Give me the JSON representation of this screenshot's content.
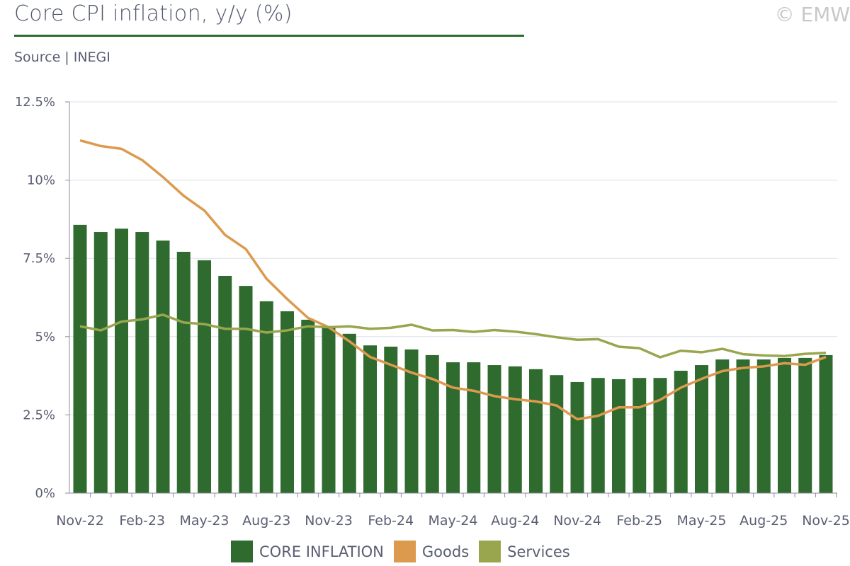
{
  "header": {
    "title": "Core CPI inflation, y/y (%)",
    "source": "Source | INEGI",
    "copyright": "© EMW"
  },
  "chart_data": {
    "type": "bar",
    "title": "Core CPI inflation, y/y (%)",
    "xlabel": "",
    "ylabel": "",
    "ylim": [
      0,
      12.5
    ],
    "yticks": [
      "0%",
      "2.5%",
      "5%",
      "7.5%",
      "10%",
      "12.5%"
    ],
    "ytick_values": [
      0,
      2.5,
      5,
      7.5,
      10,
      12.5
    ],
    "xtick_labels": [
      "Nov-22",
      "Feb-23",
      "May-23",
      "Aug-23",
      "Nov-23",
      "Feb-24",
      "May-24",
      "Aug-24",
      "Nov-24",
      "Feb-25",
      "May-25",
      "Aug-25",
      "Nov-25"
    ],
    "grid": true,
    "legend_placement": "bottom",
    "categories": [
      "Nov-22",
      "Dec-22",
      "Jan-23",
      "Feb-23",
      "Mar-23",
      "Apr-23",
      "May-23",
      "Jun-23",
      "Jul-23",
      "Aug-23",
      "Sep-23",
      "Oct-23",
      "Nov-23",
      "Dec-23",
      "Jan-24",
      "Feb-24",
      "Mar-24",
      "Apr-24",
      "May-24",
      "Jun-24",
      "Jul-24",
      "Aug-24",
      "Sep-24",
      "Oct-24",
      "Nov-24",
      "Dec-24",
      "Jan-25",
      "Feb-25",
      "Mar-25",
      "Apr-25",
      "May-25",
      "Jun-25",
      "Jul-25",
      "Aug-25",
      "Sep-25",
      "Oct-25",
      "Nov-25"
    ],
    "series": [
      {
        "name": "CORE INFLATION",
        "type": "bar",
        "color": "#2f6b2f",
        "values": [
          8.57,
          8.34,
          8.45,
          8.34,
          8.07,
          7.71,
          7.44,
          6.94,
          6.62,
          6.13,
          5.81,
          5.54,
          5.31,
          5.09,
          4.72,
          4.68,
          4.59,
          4.41,
          4.18,
          4.18,
          4.09,
          4.05,
          3.96,
          3.77,
          3.55,
          3.68,
          3.64,
          3.68,
          3.68,
          3.91,
          4.09,
          4.27,
          4.27,
          4.27,
          4.32,
          4.32,
          4.41
        ]
      },
      {
        "name": "Goods",
        "type": "line",
        "color": "#dc9a4f",
        "values": [
          11.27,
          11.09,
          11.0,
          10.64,
          10.1,
          9.5,
          9.03,
          8.25,
          7.8,
          6.85,
          6.2,
          5.6,
          5.3,
          4.85,
          4.35,
          4.1,
          3.85,
          3.65,
          3.37,
          3.27,
          3.1,
          3.0,
          2.93,
          2.8,
          2.36,
          2.47,
          2.74,
          2.74,
          2.98,
          3.37,
          3.65,
          3.9,
          4.0,
          4.05,
          4.15,
          4.1,
          4.35
        ]
      },
      {
        "name": "Services",
        "type": "line",
        "color": "#9aa64e",
        "values": [
          5.33,
          5.2,
          5.48,
          5.55,
          5.7,
          5.45,
          5.4,
          5.25,
          5.25,
          5.13,
          5.2,
          5.33,
          5.3,
          5.33,
          5.25,
          5.28,
          5.38,
          5.2,
          5.21,
          5.15,
          5.21,
          5.16,
          5.08,
          4.98,
          4.9,
          4.92,
          4.68,
          4.63,
          4.34,
          4.55,
          4.5,
          4.61,
          4.44,
          4.4,
          4.38,
          4.45,
          4.48
        ]
      }
    ]
  }
}
